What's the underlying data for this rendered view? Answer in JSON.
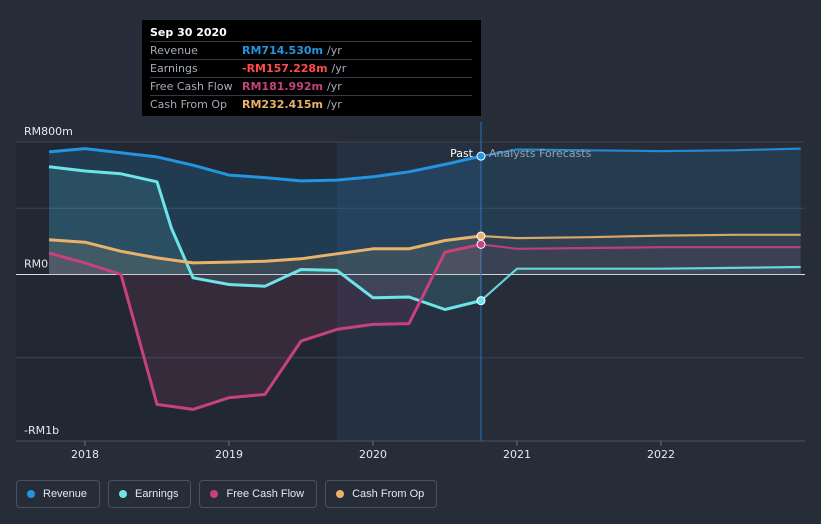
{
  "colors": {
    "revenue": "#2394df",
    "earnings": "#6ce5e8",
    "free_cash_flow": "#c7417e",
    "cash_from_op": "#e9b26b",
    "earnings_value": "#ff4a4a"
  },
  "tooltip": {
    "date": "Sep 30 2020",
    "rows": [
      {
        "label": "Revenue",
        "value": "RM714.530m",
        "unit": "/yr"
      },
      {
        "label": "Earnings",
        "value": "-RM157.228m",
        "unit": "/yr"
      },
      {
        "label": "Free Cash Flow",
        "value": "RM181.992m",
        "unit": "/yr"
      },
      {
        "label": "Cash From Op",
        "value": "RM232.415m",
        "unit": "/yr"
      }
    ]
  },
  "labels": {
    "past": "Past",
    "forecast": "Analysts Forecasts"
  },
  "legend": [
    {
      "name": "Revenue",
      "color_key": "revenue"
    },
    {
      "name": "Earnings",
      "color_key": "earnings"
    },
    {
      "name": "Free Cash Flow",
      "color_key": "free_cash_flow"
    },
    {
      "name": "Cash From Op",
      "color_key": "cash_from_op"
    }
  ],
  "chart_data": {
    "type": "line",
    "title": "",
    "xlabel": "",
    "ylabel": "",
    "y_unit": "RM m",
    "ylim": [
      -1000,
      800
    ],
    "y_ticks": [
      {
        "value": 800,
        "label": "RM800m"
      },
      {
        "value": 0,
        "label": "RM0"
      },
      {
        "value": -1000,
        "label": "-RM1b"
      }
    ],
    "x_ticks": [
      {
        "value": 2018,
        "label": "2018"
      },
      {
        "value": 2019,
        "label": "2019"
      },
      {
        "value": 2020,
        "label": "2020"
      },
      {
        "value": 2021,
        "label": "2021"
      },
      {
        "value": 2022,
        "label": "2022"
      }
    ],
    "xlim": [
      2017.55,
      2022.97
    ],
    "past_end": 2020.75,
    "highlight_start": 2019.75,
    "series": [
      {
        "name": "Revenue",
        "key": "revenue",
        "past": [
          [
            2017.75,
            740
          ],
          [
            2018.0,
            760
          ],
          [
            2018.25,
            735
          ],
          [
            2018.5,
            710
          ],
          [
            2018.75,
            660
          ],
          [
            2019.0,
            600
          ],
          [
            2019.25,
            585
          ],
          [
            2019.5,
            565
          ],
          [
            2019.75,
            570
          ],
          [
            2020.0,
            590
          ],
          [
            2020.25,
            620
          ],
          [
            2020.5,
            665
          ],
          [
            2020.75,
            714.53
          ]
        ],
        "forecast": [
          [
            2020.75,
            714.53
          ],
          [
            2021.0,
            755
          ],
          [
            2021.5,
            750
          ],
          [
            2022.0,
            745
          ],
          [
            2022.5,
            750
          ],
          [
            2022.97,
            760
          ]
        ]
      },
      {
        "name": "Earnings",
        "key": "earnings",
        "past": [
          [
            2017.75,
            650
          ],
          [
            2018.0,
            625
          ],
          [
            2018.25,
            608
          ],
          [
            2018.5,
            560
          ],
          [
            2018.6,
            280
          ],
          [
            2018.75,
            -20
          ],
          [
            2019.0,
            -60
          ],
          [
            2019.25,
            -70
          ],
          [
            2019.5,
            30
          ],
          [
            2019.75,
            25
          ],
          [
            2020.0,
            -140
          ],
          [
            2020.25,
            -135
          ],
          [
            2020.5,
            -210
          ],
          [
            2020.75,
            -157.228
          ]
        ],
        "forecast": [
          [
            2020.75,
            -157.228
          ],
          [
            2021.0,
            35
          ],
          [
            2021.5,
            35
          ],
          [
            2022.0,
            35
          ],
          [
            2022.5,
            40
          ],
          [
            2022.97,
            45
          ]
        ]
      },
      {
        "name": "Free Cash Flow",
        "key": "free_cash_flow",
        "past": [
          [
            2017.75,
            130
          ],
          [
            2018.0,
            70
          ],
          [
            2018.25,
            0
          ],
          [
            2018.5,
            -780
          ],
          [
            2018.75,
            -810
          ],
          [
            2019.0,
            -740
          ],
          [
            2019.25,
            -720
          ],
          [
            2019.5,
            -400
          ],
          [
            2019.75,
            -330
          ],
          [
            2020.0,
            -300
          ],
          [
            2020.25,
            -295
          ],
          [
            2020.5,
            135
          ],
          [
            2020.75,
            181.992
          ]
        ],
        "forecast": [
          [
            2020.75,
            181.992
          ],
          [
            2021.0,
            155
          ],
          [
            2021.5,
            160
          ],
          [
            2022.0,
            165
          ],
          [
            2022.5,
            165
          ],
          [
            2022.97,
            165
          ]
        ]
      },
      {
        "name": "Cash From Op",
        "key": "cash_from_op",
        "past": [
          [
            2017.75,
            210
          ],
          [
            2018.0,
            195
          ],
          [
            2018.25,
            140
          ],
          [
            2018.5,
            100
          ],
          [
            2018.75,
            70
          ],
          [
            2019.0,
            75
          ],
          [
            2019.25,
            80
          ],
          [
            2019.5,
            95
          ],
          [
            2019.75,
            125
          ],
          [
            2020.0,
            155
          ],
          [
            2020.25,
            155
          ],
          [
            2020.5,
            205
          ],
          [
            2020.75,
            232.415
          ]
        ],
        "forecast": [
          [
            2020.75,
            232.415
          ],
          [
            2021.0,
            220
          ],
          [
            2021.5,
            225
          ],
          [
            2022.0,
            235
          ],
          [
            2022.5,
            240
          ],
          [
            2022.97,
            240
          ]
        ]
      }
    ]
  }
}
